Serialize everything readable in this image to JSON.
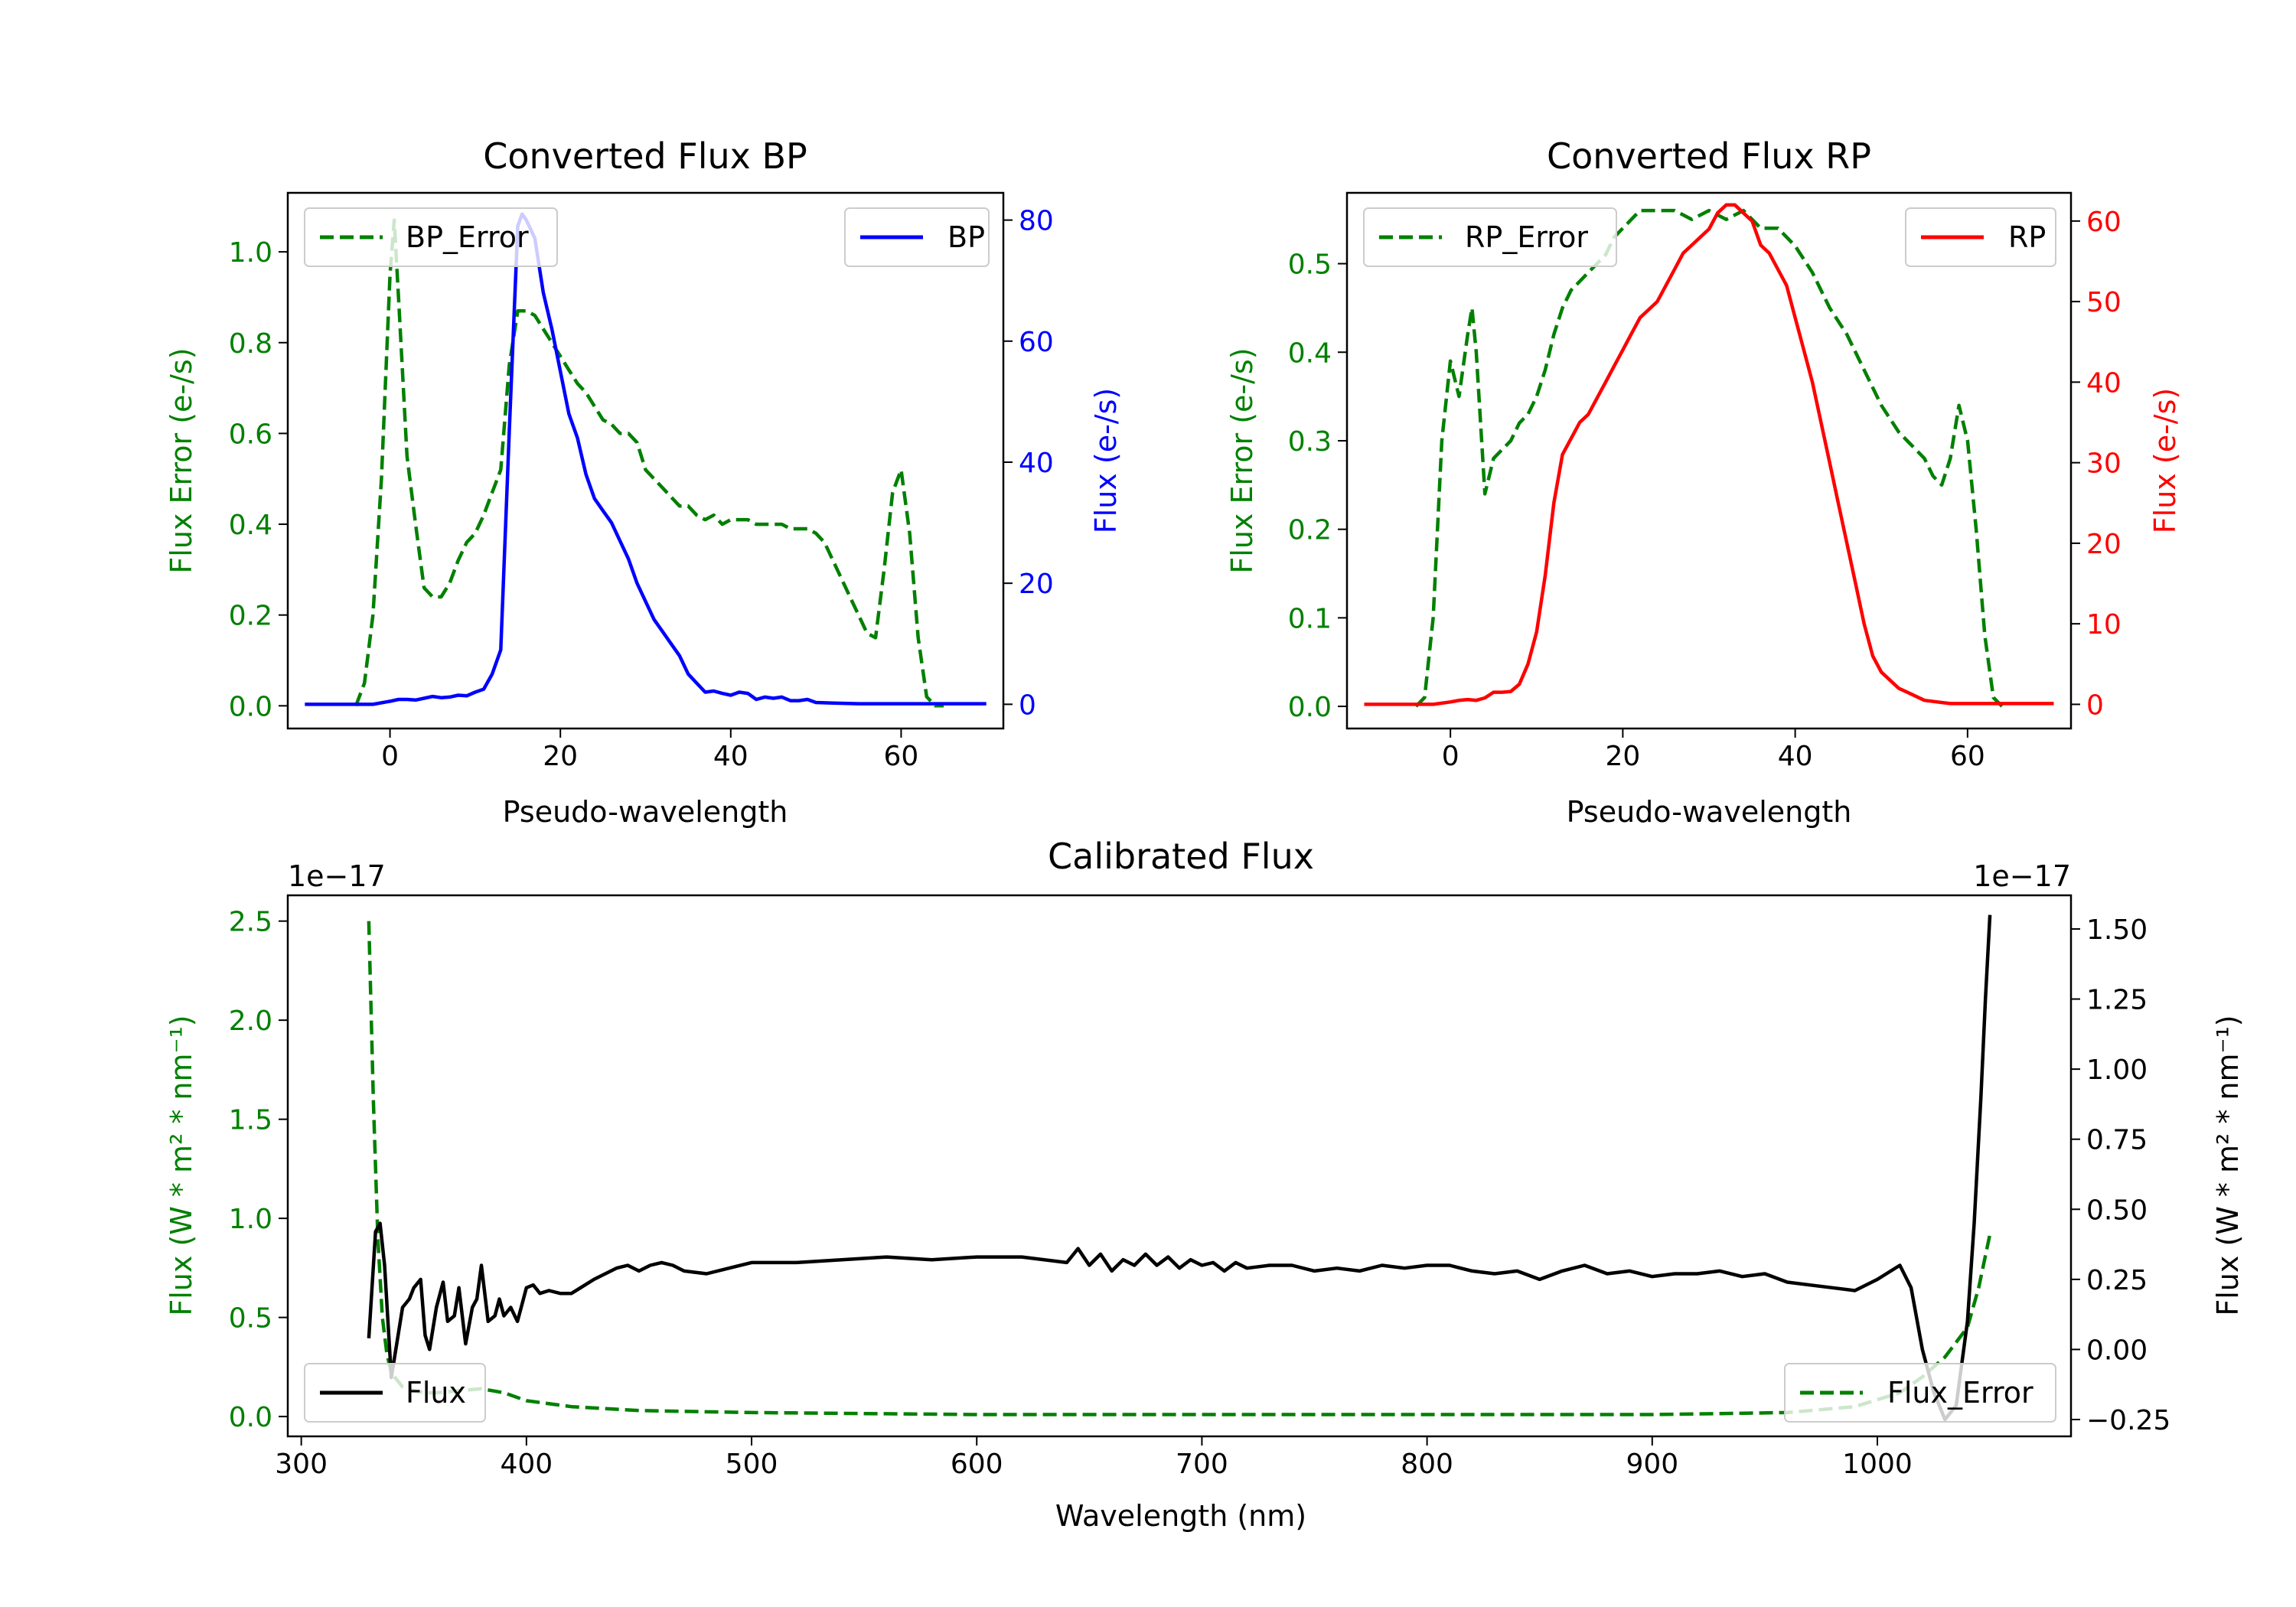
{
  "colors": {
    "green": "#008000",
    "blue": "#0000ff",
    "red": "#ff0000",
    "black": "#000000",
    "axes": "#000000",
    "legend_border": "#cccccc"
  },
  "chart_data": [
    {
      "id": "bp",
      "type": "line",
      "title": "Converted Flux BP",
      "xlabel": "Pseudo-wavelength",
      "ylabel_left": "Flux Error (e-/s)",
      "ylabel_right": "Flux (e-/s)",
      "xlim": [
        -12,
        72
      ],
      "ylim_left": [
        -0.05,
        1.13
      ],
      "ylim_right": [
        -4,
        84.5
      ],
      "xticks": [
        0,
        20,
        40,
        60
      ],
      "xtick_labels": [
        "0",
        "20",
        "40",
        "60"
      ],
      "yticks_left": [
        0.0,
        0.2,
        0.4,
        0.6,
        0.8,
        1.0
      ],
      "ytick_labels_left": [
        "0.0",
        "0.2",
        "0.4",
        "0.6",
        "0.8",
        "1.0"
      ],
      "yticks_right": [
        0,
        20,
        40,
        60,
        80
      ],
      "ytick_labels_right": [
        "0",
        "20",
        "40",
        "60",
        "80"
      ],
      "legend_left": "BP_Error",
      "legend_right": "BP",
      "series": [
        {
          "name": "BP_Error",
          "axis": "left",
          "color": "#008000",
          "style": "dashed",
          "x": [
            -4,
            -3,
            -2,
            -1,
            0,
            0.5,
            1,
            2,
            3,
            4,
            5,
            6,
            7,
            8,
            9,
            10,
            11,
            12,
            13,
            14,
            15,
            16,
            17,
            18,
            19,
            20,
            21,
            22,
            23,
            24,
            25,
            26,
            27,
            28,
            29,
            30,
            31,
            32,
            33,
            34,
            35,
            36,
            37,
            38,
            39,
            40,
            41,
            42,
            43,
            44,
            45,
            46,
            47,
            48,
            49,
            50,
            51,
            52,
            53,
            54,
            55,
            56,
            57,
            58,
            59,
            60,
            61,
            62,
            63,
            64,
            65
          ],
          "y": [
            0.0,
            0.05,
            0.2,
            0.5,
            0.95,
            1.07,
            0.9,
            0.55,
            0.4,
            0.26,
            0.24,
            0.24,
            0.27,
            0.32,
            0.36,
            0.38,
            0.42,
            0.47,
            0.52,
            0.75,
            0.87,
            0.87,
            0.86,
            0.83,
            0.8,
            0.77,
            0.74,
            0.71,
            0.69,
            0.66,
            0.63,
            0.62,
            0.6,
            0.6,
            0.58,
            0.52,
            0.5,
            0.48,
            0.46,
            0.44,
            0.44,
            0.42,
            0.41,
            0.42,
            0.4,
            0.41,
            0.41,
            0.41,
            0.4,
            0.4,
            0.4,
            0.4,
            0.39,
            0.39,
            0.39,
            0.38,
            0.36,
            0.32,
            0.28,
            0.24,
            0.2,
            0.16,
            0.15,
            0.3,
            0.47,
            0.52,
            0.38,
            0.15,
            0.02,
            0.0,
            0.0
          ]
        },
        {
          "name": "BP",
          "axis": "right",
          "color": "#0000ff",
          "style": "solid",
          "x": [
            -10,
            -8,
            -6,
            -4,
            -2,
            0,
            1,
            2,
            3,
            4,
            5,
            6,
            7,
            8,
            9,
            10,
            11,
            12,
            13,
            14,
            15,
            15.5,
            16,
            17,
            18,
            19,
            20,
            21,
            22,
            23,
            24,
            25,
            26,
            27,
            28,
            29,
            30,
            31,
            32,
            33,
            34,
            35,
            36,
            37,
            38,
            39,
            40,
            41,
            42,
            43,
            44,
            45,
            46,
            47,
            48,
            49,
            50,
            52,
            55,
            58,
            60,
            62,
            65,
            68,
            70
          ],
          "y": [
            0,
            0,
            0,
            0,
            0,
            0.5,
            0.8,
            0.8,
            0.7,
            1.0,
            1.3,
            1.1,
            1.2,
            1.5,
            1.4,
            2.0,
            2.5,
            5.0,
            9.0,
            45.0,
            79.0,
            81.0,
            80.0,
            77.0,
            68.0,
            62.0,
            55.0,
            48.0,
            44.0,
            38.0,
            34.0,
            32.0,
            30.0,
            27.0,
            24.0,
            20.0,
            17.0,
            14.0,
            12.0,
            10.0,
            8.0,
            5.0,
            3.5,
            2.0,
            2.2,
            1.8,
            1.5,
            2.0,
            1.8,
            0.8,
            1.2,
            1.0,
            1.2,
            0.6,
            0.6,
            0.8,
            0.3,
            0.2,
            0.1,
            0.1,
            0.1,
            0.1,
            0.1,
            0.1,
            0.1
          ]
        }
      ]
    },
    {
      "id": "rp",
      "type": "line",
      "title": "Converted Flux RP",
      "xlabel": "Pseudo-wavelength",
      "ylabel_left": "Flux Error (e-/s)",
      "ylabel_right": "Flux (e-/s)",
      "xlim": [
        -12,
        72
      ],
      "ylim_left": [
        -0.025,
        0.58
      ],
      "ylim_right": [
        -3,
        63.5
      ],
      "xticks": [
        0,
        20,
        40,
        60
      ],
      "xtick_labels": [
        "0",
        "20",
        "40",
        "60"
      ],
      "yticks_left": [
        0.0,
        0.1,
        0.2,
        0.3,
        0.4,
        0.5
      ],
      "ytick_labels_left": [
        "0.0",
        "0.1",
        "0.2",
        "0.3",
        "0.4",
        "0.5"
      ],
      "yticks_right": [
        0,
        10,
        20,
        30,
        40,
        50,
        60
      ],
      "ytick_labels_right": [
        "0",
        "10",
        "20",
        "30",
        "40",
        "50",
        "60"
      ],
      "legend_left": "RP_Error",
      "legend_right": "RP",
      "series": [
        {
          "name": "RP_Error",
          "axis": "left",
          "color": "#008000",
          "style": "dashed",
          "x": [
            -4,
            -3,
            -2,
            -1,
            0,
            1,
            2,
            2.5,
            3,
            4,
            5,
            6,
            7,
            8,
            9,
            10,
            11,
            12,
            13,
            14,
            15,
            16,
            17,
            18,
            19,
            20,
            21,
            22,
            24,
            26,
            28,
            30,
            32,
            34,
            36,
            38,
            40,
            42,
            44,
            46,
            48,
            50,
            52,
            53,
            54,
            55,
            56,
            57,
            58,
            59,
            60,
            61,
            62,
            63,
            64
          ],
          "y": [
            0.0,
            0.01,
            0.1,
            0.3,
            0.39,
            0.35,
            0.42,
            0.45,
            0.4,
            0.24,
            0.28,
            0.29,
            0.3,
            0.32,
            0.33,
            0.35,
            0.38,
            0.42,
            0.45,
            0.47,
            0.48,
            0.49,
            0.5,
            0.51,
            0.53,
            0.54,
            0.55,
            0.56,
            0.56,
            0.56,
            0.55,
            0.56,
            0.55,
            0.56,
            0.54,
            0.54,
            0.52,
            0.49,
            0.45,
            0.42,
            0.38,
            0.34,
            0.31,
            0.3,
            0.29,
            0.28,
            0.26,
            0.25,
            0.28,
            0.34,
            0.3,
            0.2,
            0.08,
            0.01,
            0.0
          ]
        },
        {
          "name": "RP",
          "axis": "right",
          "color": "#ff0000",
          "style": "solid",
          "x": [
            -10,
            -6,
            -2,
            0,
            1,
            2,
            3,
            4,
            5,
            6,
            7,
            8,
            9,
            10,
            11,
            12,
            13,
            14,
            15,
            16,
            17,
            18,
            19,
            20,
            21,
            22,
            23,
            24,
            25,
            26,
            27,
            28,
            29,
            30,
            31,
            32,
            33,
            34,
            35,
            36,
            37,
            38,
            39,
            40,
            41,
            42,
            43,
            44,
            45,
            46,
            47,
            48,
            49,
            50,
            51,
            52,
            53,
            55,
            58,
            60,
            64,
            68,
            70
          ],
          "y": [
            0,
            0,
            0,
            0.3,
            0.5,
            0.6,
            0.5,
            0.8,
            1.5,
            1.5,
            1.6,
            2.5,
            5,
            9,
            16,
            25,
            31,
            33,
            35,
            36,
            38,
            40,
            42,
            44,
            46,
            48,
            49,
            50,
            52,
            54,
            56,
            57,
            58,
            59,
            61,
            62,
            62,
            61,
            60,
            57,
            56,
            54,
            52,
            48,
            44,
            40,
            35,
            30,
            25,
            20,
            15,
            10,
            6,
            4,
            3,
            2,
            1.5,
            0.5,
            0.1,
            0.1,
            0.1,
            0.1,
            0.1
          ]
        }
      ]
    },
    {
      "id": "calibrated",
      "type": "line",
      "title": "Calibrated Flux",
      "xlabel": "Wavelength (nm)",
      "ylabel_left": "Flux (W * m² * nm⁻¹)",
      "ylabel_right": "Flux (W * m² * nm⁻¹)",
      "offset_left": "1e−17",
      "offset_right": "1e−17",
      "xlim": [
        294,
        1086
      ],
      "ylim_left": [
        -0.1,
        2.63
      ],
      "ylim_right": [
        -0.31,
        1.62
      ],
      "xticks": [
        300,
        400,
        500,
        600,
        700,
        800,
        900,
        1000
      ],
      "xtick_labels": [
        "300",
        "400",
        "500",
        "600",
        "700",
        "800",
        "900",
        "1000"
      ],
      "yticks_left": [
        0.0,
        0.5,
        1.0,
        1.5,
        2.0,
        2.5
      ],
      "ytick_labels_left": [
        "0.0",
        "0.5",
        "1.0",
        "1.5",
        "2.0",
        "2.5"
      ],
      "yticks_right": [
        -0.25,
        0.0,
        0.25,
        0.5,
        0.75,
        1.0,
        1.25,
        1.5
      ],
      "ytick_labels_right": [
        "−0.25",
        "0.00",
        "0.25",
        "0.50",
        "0.75",
        "1.00",
        "1.25",
        "1.50"
      ],
      "legend_left": "Flux",
      "legend_right": "Flux_Error",
      "series": [
        {
          "name": "Flux_Error",
          "axis": "left",
          "color": "#008000",
          "style": "dashed",
          "x": [
            330,
            332,
            334,
            336,
            338,
            340,
            345,
            350,
            355,
            360,
            370,
            380,
            390,
            400,
            420,
            450,
            500,
            600,
            700,
            800,
            900,
            960,
            990,
            1010,
            1020,
            1030,
            1040,
            1045,
            1050
          ],
          "y": [
            2.5,
            1.6,
            0.9,
            0.5,
            0.32,
            0.22,
            0.15,
            0.13,
            0.12,
            0.12,
            0.13,
            0.14,
            0.12,
            0.08,
            0.05,
            0.03,
            0.02,
            0.01,
            0.01,
            0.01,
            0.01,
            0.02,
            0.05,
            0.12,
            0.2,
            0.3,
            0.45,
            0.65,
            0.92
          ]
        },
        {
          "name": "Flux",
          "axis": "right",
          "color": "#000000",
          "style": "solid",
          "x": [
            330,
            333,
            335,
            337,
            340,
            342,
            345,
            348,
            350,
            353,
            355,
            357,
            360,
            363,
            365,
            368,
            370,
            373,
            376,
            378,
            380,
            383,
            386,
            388,
            390,
            393,
            396,
            398,
            400,
            403,
            406,
            410,
            415,
            420,
            430,
            440,
            445,
            450,
            455,
            460,
            465,
            470,
            480,
            490,
            500,
            520,
            540,
            560,
            580,
            600,
            620,
            640,
            645,
            650,
            655,
            660,
            665,
            670,
            675,
            680,
            685,
            690,
            695,
            700,
            705,
            710,
            715,
            720,
            730,
            740,
            750,
            760,
            770,
            780,
            790,
            800,
            810,
            820,
            830,
            840,
            850,
            860,
            870,
            880,
            890,
            900,
            910,
            920,
            930,
            940,
            950,
            960,
            970,
            980,
            990,
            1000,
            1010,
            1015,
            1020,
            1025,
            1030,
            1035,
            1040,
            1043,
            1046,
            1048,
            1050
          ],
          "y": [
            0.04,
            0.42,
            0.45,
            0.3,
            -0.1,
            0.0,
            0.15,
            0.18,
            0.22,
            0.25,
            0.05,
            0.0,
            0.15,
            0.24,
            0.1,
            0.12,
            0.22,
            0.02,
            0.15,
            0.18,
            0.3,
            0.1,
            0.12,
            0.18,
            0.12,
            0.15,
            0.1,
            0.16,
            0.22,
            0.23,
            0.2,
            0.21,
            0.2,
            0.2,
            0.25,
            0.29,
            0.3,
            0.28,
            0.3,
            0.31,
            0.3,
            0.28,
            0.27,
            0.29,
            0.31,
            0.31,
            0.32,
            0.33,
            0.32,
            0.33,
            0.33,
            0.31,
            0.36,
            0.3,
            0.34,
            0.28,
            0.32,
            0.3,
            0.34,
            0.3,
            0.33,
            0.29,
            0.32,
            0.3,
            0.31,
            0.28,
            0.31,
            0.29,
            0.3,
            0.3,
            0.28,
            0.29,
            0.28,
            0.3,
            0.29,
            0.3,
            0.3,
            0.28,
            0.27,
            0.28,
            0.25,
            0.28,
            0.3,
            0.27,
            0.28,
            0.26,
            0.27,
            0.27,
            0.28,
            0.26,
            0.27,
            0.24,
            0.23,
            0.22,
            0.21,
            0.25,
            0.3,
            0.22,
            0.0,
            -0.15,
            -0.25,
            -0.2,
            0.1,
            0.45,
            0.9,
            1.25,
            1.55
          ]
        }
      ]
    }
  ]
}
